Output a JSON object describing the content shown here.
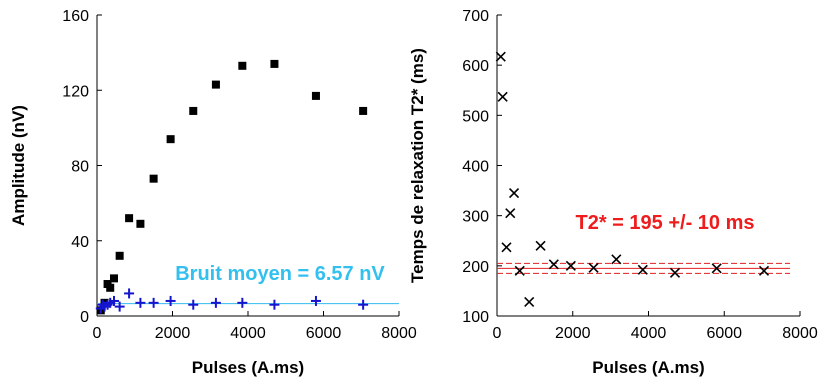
{
  "chart_data": [
    {
      "type": "scatter",
      "xlabel": "Pulses (A.ms)",
      "ylabel": "Amplitude (nV)",
      "xlim": [
        0,
        8000
      ],
      "ylim": [
        0,
        160
      ],
      "xticks": [
        0,
        2000,
        4000,
        6000,
        8000
      ],
      "yticks": [
        0,
        40,
        80,
        120,
        160
      ],
      "grid": false,
      "series": [
        {
          "marker": "square",
          "color": "#000000",
          "x": [
            100,
            200,
            280,
            350,
            450,
            600,
            850,
            1150,
            1500,
            1950,
            2550,
            3150,
            3850,
            4700,
            5800,
            7050
          ],
          "y": [
            3,
            7,
            17,
            15,
            20,
            32,
            52,
            49,
            73,
            94,
            109,
            123,
            133,
            134,
            117,
            109
          ]
        },
        {
          "marker": "plus",
          "color": "#1515d0",
          "x": [
            100,
            150,
            200,
            280,
            350,
            450,
            600,
            850,
            1150,
            1500,
            1950,
            2550,
            3150,
            3850,
            4700,
            5800,
            7050
          ],
          "y": [
            4,
            6,
            5,
            6,
            7,
            8,
            5,
            12,
            7,
            7,
            8,
            6,
            7,
            7,
            6,
            8,
            6
          ]
        }
      ],
      "reference_line": {
        "y": 6.57,
        "color": "#33bbee"
      },
      "annotation": {
        "text": "Bruit moyen = 6.57 nV",
        "color": "#33c0ee"
      }
    },
    {
      "type": "scatter",
      "xlabel": "Pulses (A.ms)",
      "ylabel": "Temps de relaxation T2* (ms)",
      "xlim": [
        0,
        8000
      ],
      "ylim": [
        100,
        700
      ],
      "xticks": [
        0,
        2000,
        4000,
        6000,
        8000
      ],
      "yticks": [
        100,
        200,
        300,
        400,
        500,
        600,
        700
      ],
      "grid": false,
      "series": [
        {
          "marker": "x",
          "color": "#000000",
          "x": [
            100,
            150,
            250,
            350,
            450,
            600,
            850,
            1150,
            1500,
            1950,
            2550,
            3150,
            3850,
            4700,
            5800,
            7050
          ],
          "y": [
            617,
            537,
            237,
            305,
            345,
            190,
            128,
            240,
            203,
            200,
            196,
            213,
            192,
            186,
            195,
            190
          ]
        }
      ],
      "reference_lines": [
        {
          "y": 195,
          "style": "solid",
          "color": "#e02020"
        },
        {
          "y": 185,
          "style": "dashed",
          "color": "#e02020"
        },
        {
          "y": 205,
          "style": "dashed",
          "color": "#e02020"
        }
      ],
      "annotation": {
        "text": "T2* = 195 +/- 10 ms",
        "color": "#ee1c1c"
      }
    }
  ]
}
